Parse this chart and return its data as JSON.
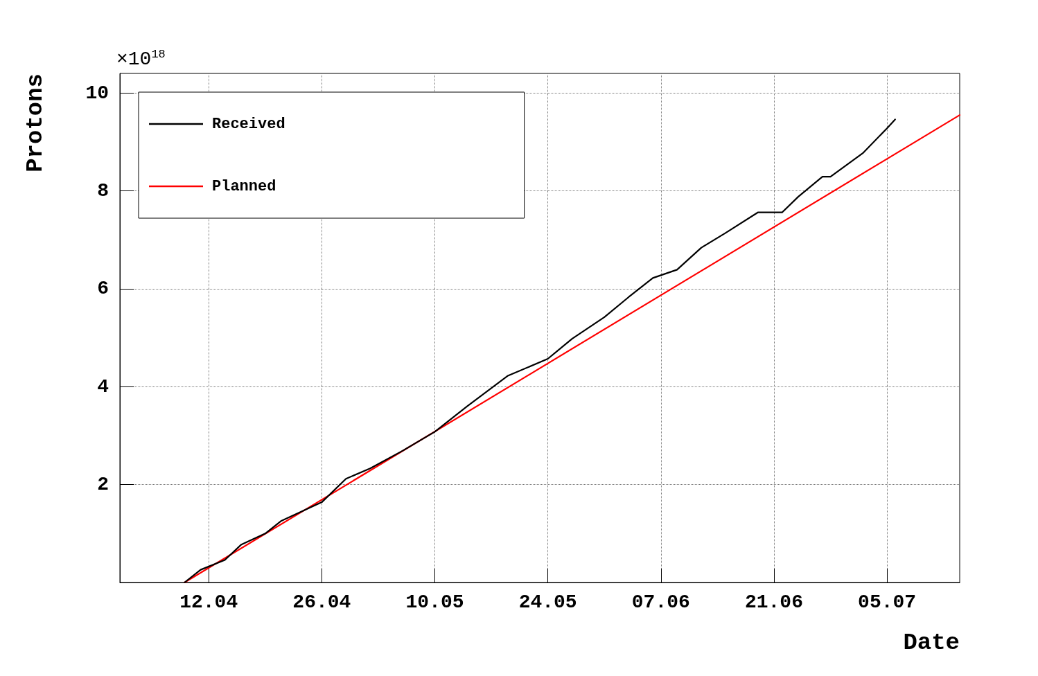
{
  "chart_data": {
    "type": "line",
    "xlabel": "Date",
    "ylabel": "Protons",
    "annotations": [
      "×10$^{18}$"
    ],
    "xlim": [
      "--04-01",
      "--07-14"
    ],
    "xticks": [
      {
        "value": "--04-12",
        "label": "12.04"
      },
      {
        "value": "--04-26",
        "label": "26.04"
      },
      {
        "value": "--05-10",
        "label": "10.05"
      },
      {
        "value": "--05-24",
        "label": "24.05"
      },
      {
        "value": "--06-07",
        "label": "07.06"
      },
      {
        "value": "--06-21",
        "label": "21.06"
      },
      {
        "value": "--07-05",
        "label": "05.07"
      }
    ],
    "ylim": [
      0,
      10.4
    ],
    "yticks": [
      2,
      4,
      6,
      8,
      10
    ],
    "grid": true,
    "legend": "top left",
    "marker": "none",
    "line_style": "solid",
    "series": [
      {
        "name": "Received",
        "color": "#000000",
        "x": [
          "--04-09",
          "--04-11",
          "--04-14",
          "--04-16",
          "--04-19",
          "--04-21",
          "--04-26",
          "--04-29",
          "--05-02",
          "--05-06",
          "--05-10",
          "--05-14",
          "--05-19",
          "--05-24",
          "--05-27",
          "--05-31",
          "--06-03",
          "--06-06",
          "--06-09",
          "--06-12",
          "--06-15",
          "--06-19",
          "--06-22",
          "--06-24",
          "--06-27",
          "--06-28",
          "--07-02",
          "--07-05",
          "--07-06"
        ],
        "values": [
          0,
          0.26,
          0.46,
          0.77,
          1.0,
          1.26,
          1.64,
          2.12,
          2.33,
          2.69,
          3.08,
          3.6,
          4.22,
          4.57,
          4.98,
          5.42,
          5.83,
          6.22,
          6.39,
          6.84,
          7.14,
          7.56,
          7.56,
          7.88,
          8.29,
          8.29,
          8.77,
          9.28,
          9.46
        ]
      },
      {
        "name": "Planned",
        "color": "#ff0000",
        "x": [
          "--04-09",
          "--07-14"
        ],
        "values": [
          0,
          9.55
        ]
      }
    ]
  }
}
